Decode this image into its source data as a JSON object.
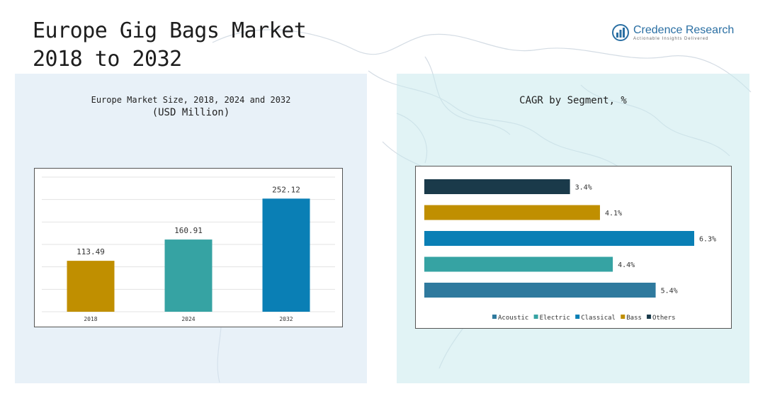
{
  "header": {
    "title_line1": "Europe Gig Bags Market",
    "title_line2": "2018 to 2032"
  },
  "brand": {
    "name": "Credence Research",
    "tagline": "Actionable Insights Delivered",
    "color": "#2a6fa3"
  },
  "left_chart": {
    "title": "Europe Market Size, 2018, 2024 and 2032",
    "subtitle": "(USD Million)"
  },
  "right_chart": {
    "title": "CAGR by Segment, %"
  },
  "chart_data": [
    {
      "type": "bar",
      "title": "Europe Market Size, 2018, 2024 and 2032",
      "subtitle": "(USD Million)",
      "categories": [
        "2018",
        "2024",
        "2032"
      ],
      "values": [
        113.49,
        160.91,
        252.12
      ],
      "value_labels": [
        "113.49",
        "160.91",
        "252.12"
      ],
      "colors": [
        "#c08f00",
        "#36a3a3",
        "#0a7fb5"
      ],
      "ylim": [
        0,
        300
      ],
      "grid": true,
      "legend": "none"
    },
    {
      "type": "bar",
      "orientation": "horizontal",
      "title": "CAGR by Segment, %",
      "categories": [
        "Others",
        "Bass",
        "Classical",
        "Electric",
        "Acoustic"
      ],
      "values": [
        3.4,
        4.1,
        6.3,
        4.4,
        5.4
      ],
      "value_labels": [
        "3.4%",
        "4.1%",
        "6.3%",
        "4.4%",
        "5.4%"
      ],
      "colors": [
        "#1a3a4a",
        "#c08f00",
        "#0a7fb5",
        "#36a3a3",
        "#2f7a9e"
      ],
      "legend_order": [
        "Acoustic",
        "Electric",
        "Classical",
        "Bass",
        "Others"
      ],
      "legend_colors": [
        "#2f7a9e",
        "#36a3a3",
        "#0a7fb5",
        "#c08f00",
        "#1a3a4a"
      ],
      "xlim": [
        0,
        6.3
      ],
      "grid": false,
      "legend": "bottom"
    }
  ]
}
